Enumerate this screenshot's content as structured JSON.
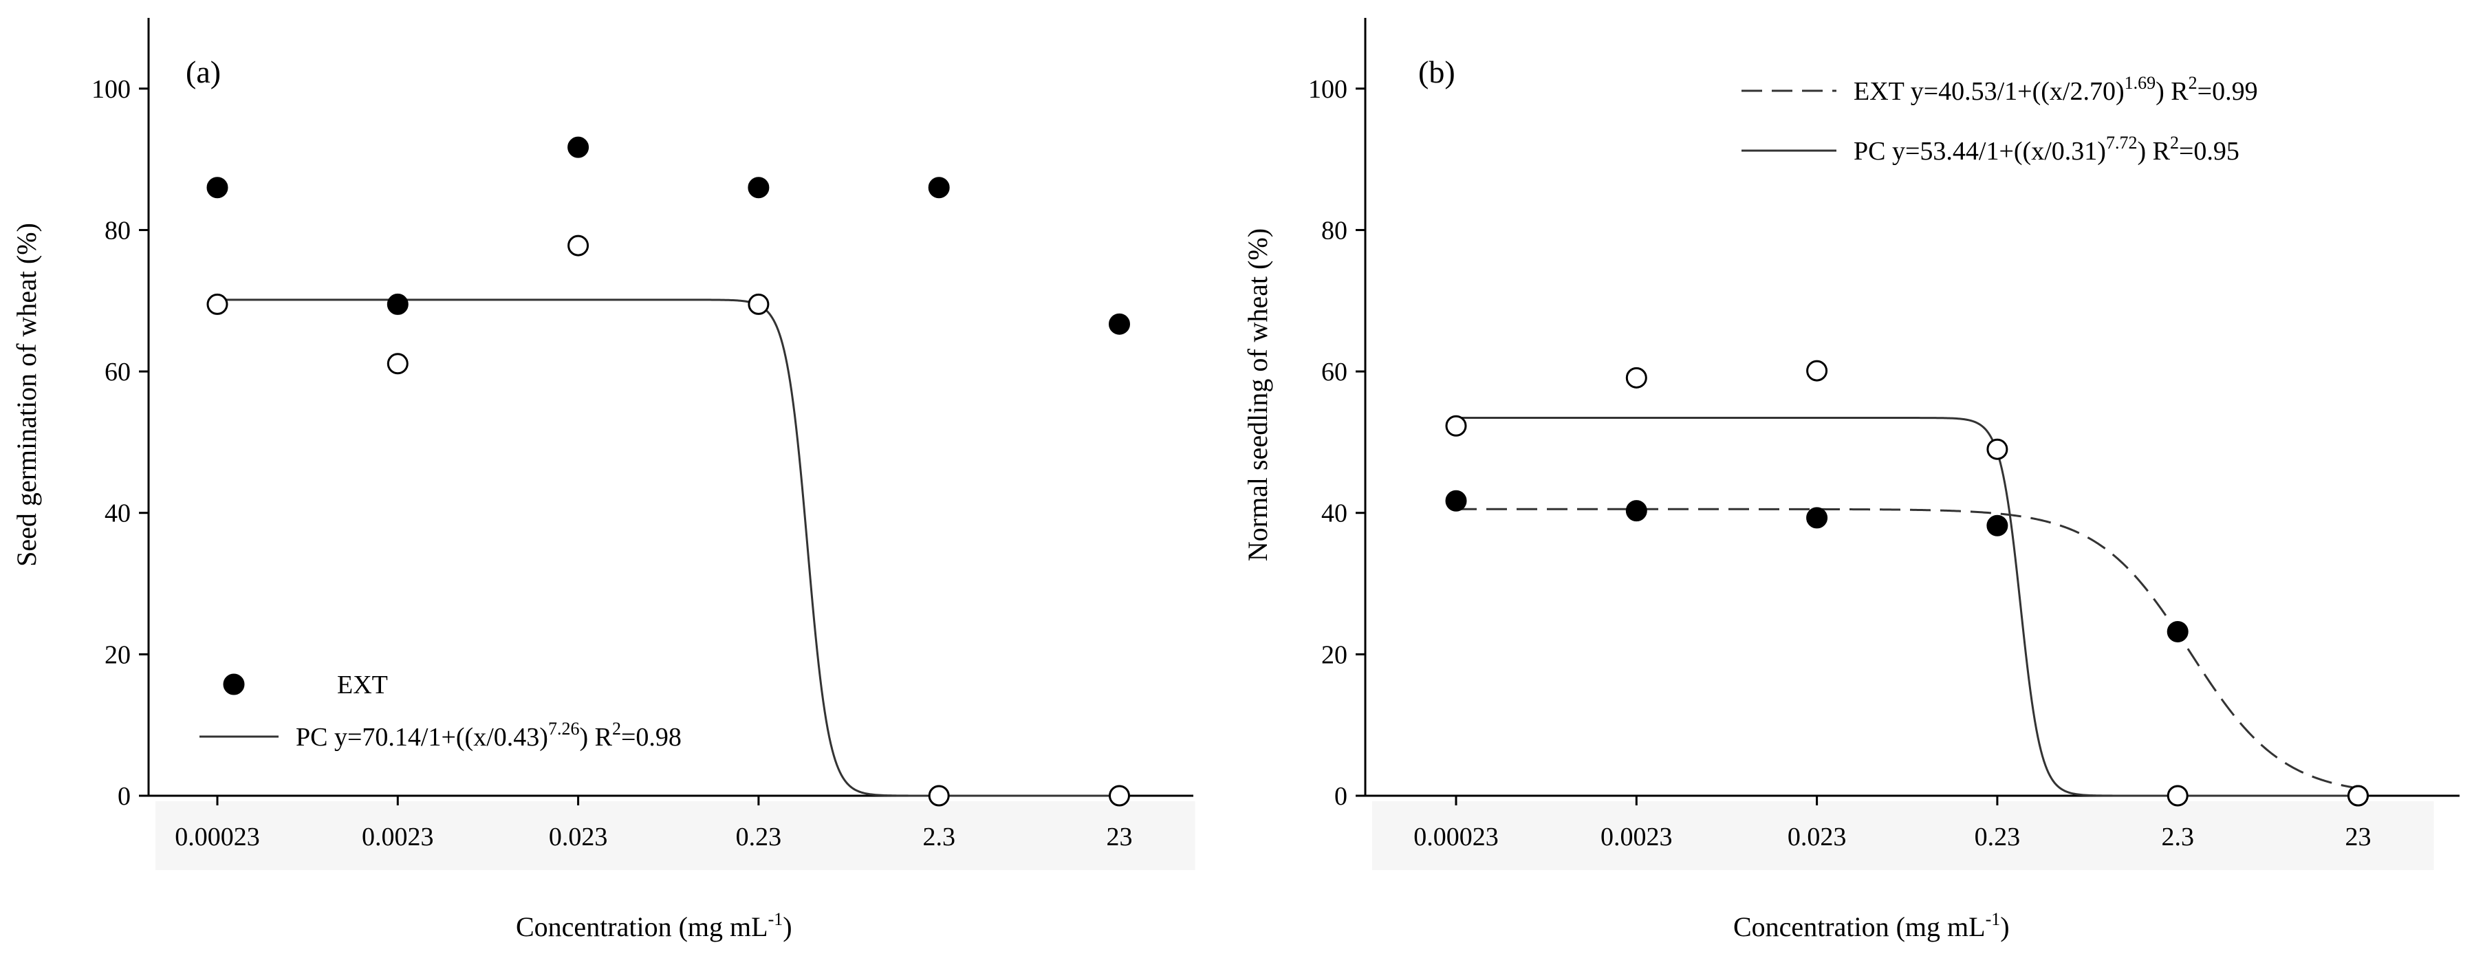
{
  "chart_data": [
    {
      "panel": "(a)",
      "type": "scatter",
      "categories": [
        "0.00023",
        "0.0023",
        "0.023",
        "0.23",
        "2.3",
        "23"
      ],
      "xlabel_main": "Concentration (mg mL",
      "xlabel_sup": "-1",
      "xlabel_close": ")",
      "ylabel": "Seed germination of wheat (%)",
      "ylim": [
        0,
        110
      ],
      "yticks": [
        0,
        20,
        40,
        60,
        80,
        100
      ],
      "series": [
        {
          "name": "EXT",
          "marker": "filled-circle",
          "values": [
            86,
            69.5,
            91.7,
            86,
            86,
            66.7
          ]
        },
        {
          "name": "PC",
          "marker": "open-circle",
          "values": [
            69.5,
            61.1,
            77.8,
            69.5,
            0,
            0
          ],
          "fit": {
            "type": "log-logistic",
            "a": 70.14,
            "x0": 0.43,
            "b": 7.26,
            "line": "solid"
          }
        }
      ],
      "legend": [
        {
          "kind": "marker",
          "marker": "filled-circle",
          "label": "EXT"
        },
        {
          "kind": "line",
          "style": "solid",
          "prefix": "PC ",
          "eq": "y=70.14/1+((x/0.43)",
          "exp": "7.26",
          "eq_close": ")",
          "r2": " R",
          "r2_sup": "2",
          "r2_val": "=0.98"
        }
      ]
    },
    {
      "panel": "(b)",
      "type": "scatter",
      "categories": [
        "0.00023",
        "0.0023",
        "0.023",
        "0.23",
        "2.3",
        "23"
      ],
      "xlabel_main": "Concentration (mg mL",
      "xlabel_sup": "-1",
      "xlabel_close": ")",
      "ylabel": "Normal seedling of wheat (%)",
      "ylim": [
        0,
        110
      ],
      "yticks": [
        0,
        20,
        40,
        60,
        80,
        100
      ],
      "series": [
        {
          "name": "EXT",
          "marker": "filled-circle",
          "values": [
            41.7,
            40.3,
            39.3,
            38.2,
            23.2,
            0
          ],
          "fit": {
            "type": "log-logistic",
            "a": 40.53,
            "x0": 2.7,
            "b": 1.69,
            "line": "dashed"
          }
        },
        {
          "name": "PC",
          "marker": "open-circle",
          "values": [
            52.3,
            59.1,
            60.1,
            49.0,
            0,
            0
          ],
          "fit": {
            "type": "log-logistic",
            "a": 53.44,
            "x0": 0.31,
            "b": 7.72,
            "line": "solid"
          }
        }
      ],
      "legend": [
        {
          "kind": "line",
          "style": "dashed",
          "prefix": "EXT ",
          "eq": "y=40.53/1+((x/2.70)",
          "exp": "1.69",
          "eq_close": ")",
          "r2": " R",
          "r2_sup": "2",
          "r2_val": "=0.99"
        },
        {
          "kind": "line",
          "style": "solid",
          "prefix": "PC ",
          "eq": "y=53.44/1+((x/0.31)",
          "exp": "7.72",
          "eq_close": ")",
          "r2": " R",
          "r2_sup": "2",
          "r2_val": "=0.95"
        }
      ]
    }
  ]
}
